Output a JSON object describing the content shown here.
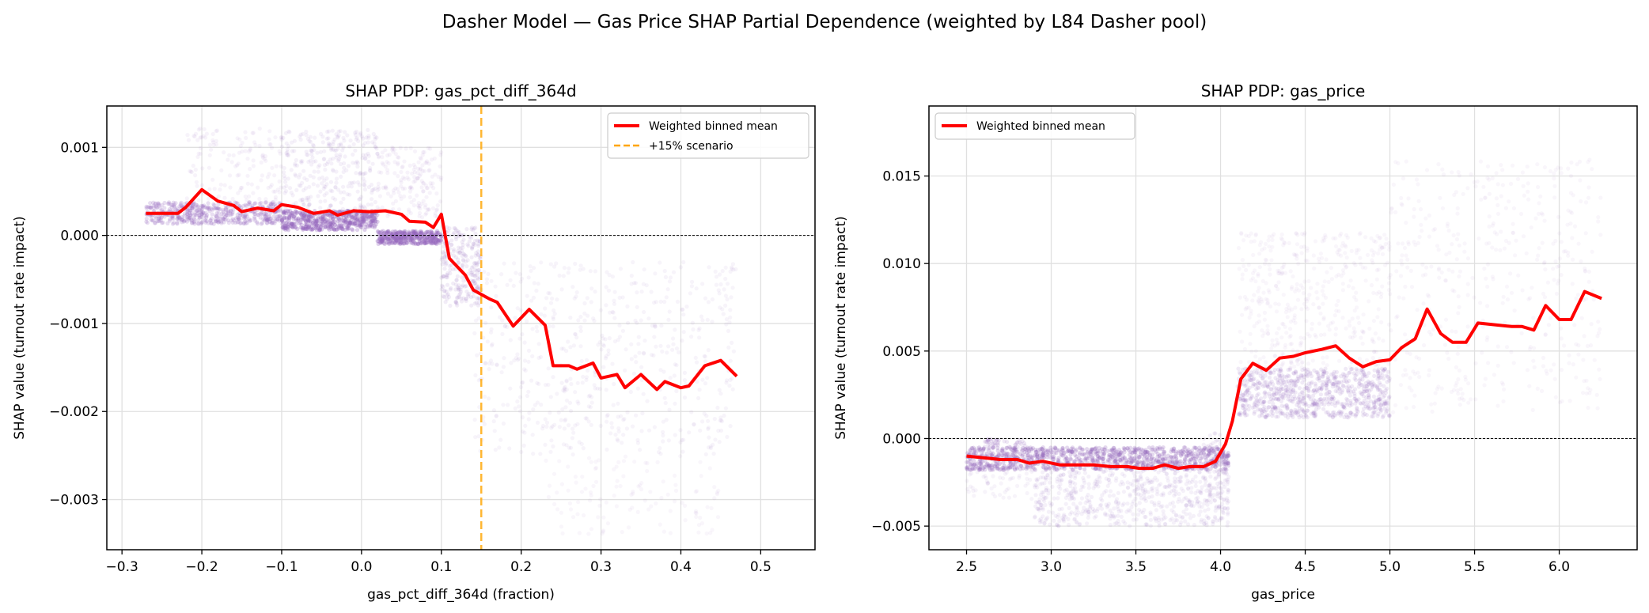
{
  "suptitle": "Dasher Model — Gas Price SHAP Partial Dependence (weighted by L84 Dasher pool)",
  "colors": {
    "scatter": "#9467bd",
    "line": "#ff0000",
    "scenario": "#ffa500",
    "grid": "#e0e0e0"
  },
  "chart_data": [
    {
      "type": "scatter",
      "title": "SHAP PDP: gas_pct_diff_364d",
      "xlabel": "gas_pct_diff_364d (fraction)",
      "ylabel": "SHAP value (turnout rate impact)",
      "xlim": [
        -0.319,
        0.568
      ],
      "ylim": [
        -0.00357,
        0.00147
      ],
      "xticks": [
        -0.3,
        -0.2,
        -0.1,
        0.0,
        0.1,
        0.2,
        0.3,
        0.4,
        0.5
      ],
      "xtick_labels": [
        "−0.3",
        "−0.2",
        "−0.1",
        "0.0",
        "0.1",
        "0.2",
        "0.3",
        "0.4",
        "0.5"
      ],
      "yticks": [
        -0.003,
        -0.002,
        -0.001,
        0.0,
        0.001
      ],
      "ytick_labels": [
        "−0.003",
        "−0.002",
        "−0.001",
        "0.000",
        "0.001"
      ],
      "grid": true,
      "zero_line": 0,
      "legend_position": "upper right",
      "legend": [
        "Weighted binned mean",
        "+15% scenario"
      ],
      "vline": {
        "x": 0.15,
        "name": "+15% scenario"
      },
      "line": {
        "name": "Weighted binned mean",
        "x": [
          -0.27,
          -0.25,
          -0.23,
          -0.22,
          -0.2,
          -0.18,
          -0.16,
          -0.15,
          -0.13,
          -0.11,
          -0.1,
          -0.08,
          -0.06,
          -0.04,
          -0.03,
          -0.01,
          0.01,
          0.03,
          0.05,
          0.06,
          0.08,
          0.09,
          0.1,
          0.11,
          0.13,
          0.14,
          0.16,
          0.17,
          0.19,
          0.21,
          0.23,
          0.24,
          0.26,
          0.27,
          0.29,
          0.3,
          0.32,
          0.33,
          0.35,
          0.37,
          0.38,
          0.4,
          0.41,
          0.43,
          0.45,
          0.47
        ],
        "y": [
          0.00025,
          0.00025,
          0.00025,
          0.00032,
          0.00052,
          0.00039,
          0.00034,
          0.00027,
          0.00031,
          0.00028,
          0.00035,
          0.00032,
          0.00025,
          0.00028,
          0.00023,
          0.00028,
          0.00027,
          0.00028,
          0.00024,
          0.00016,
          0.00015,
          9e-05,
          0.00024,
          -0.00026,
          -0.00045,
          -0.00062,
          -0.00072,
          -0.00076,
          -0.00103,
          -0.00084,
          -0.00102,
          -0.00148,
          -0.00148,
          -0.00152,
          -0.00145,
          -0.00162,
          -0.00158,
          -0.00173,
          -0.00158,
          -0.00175,
          -0.00166,
          -0.00173,
          -0.00171,
          -0.00148,
          -0.00142,
          -0.0016
        ]
      },
      "scatter_clouds": [
        {
          "x": [
            -0.27,
            -0.1
          ],
          "y": [
            0.00013,
            0.00038
          ],
          "n": 500,
          "alpha": 0.22
        },
        {
          "x": [
            -0.1,
            0.02
          ],
          "y": [
            6e-05,
            0.00028
          ],
          "n": 500,
          "alpha": 0.3
        },
        {
          "x": [
            0.02,
            0.1
          ],
          "y": [
            -0.0001,
            5e-05
          ],
          "n": 350,
          "alpha": 0.3
        },
        {
          "x": [
            -0.22,
            -0.1
          ],
          "y": [
            0.0004,
            0.00122
          ],
          "n": 140,
          "alpha": 0.08
        },
        {
          "x": [
            -0.1,
            0.02
          ],
          "y": [
            0.0003,
            0.0012
          ],
          "n": 300,
          "alpha": 0.09
        },
        {
          "x": [
            0.02,
            0.1
          ],
          "y": [
            0.0002,
            0.001
          ],
          "n": 180,
          "alpha": 0.08
        },
        {
          "x": [
            0.1,
            0.15
          ],
          "y": [
            -0.0008,
            0.0001
          ],
          "n": 250,
          "alpha": 0.12
        },
        {
          "x": [
            0.14,
            0.47
          ],
          "y": [
            -0.0025,
            -0.0003
          ],
          "n": 600,
          "alpha": 0.07
        },
        {
          "x": [
            0.23,
            0.45
          ],
          "y": [
            -0.0034,
            -0.0025
          ],
          "n": 120,
          "alpha": 0.06
        }
      ]
    },
    {
      "type": "scatter",
      "title": "SHAP PDP: gas_price",
      "xlabel": "gas_price",
      "ylabel": "SHAP value (turnout rate impact)",
      "xlim": [
        2.278,
        6.46
      ],
      "ylim": [
        -0.00635,
        0.019
      ],
      "xticks": [
        2.5,
        3.0,
        3.5,
        4.0,
        4.5,
        5.0,
        5.5,
        6.0
      ],
      "xtick_labels": [
        "2.5",
        "3.0",
        "3.5",
        "4.0",
        "4.5",
        "5.0",
        "5.5",
        "6.0"
      ],
      "yticks": [
        -0.005,
        0.0,
        0.005,
        0.01,
        0.015
      ],
      "ytick_labels": [
        "−0.005",
        "0.000",
        "0.005",
        "0.010",
        "0.015"
      ],
      "grid": true,
      "zero_line": 0,
      "legend_position": "upper left",
      "legend": [
        "Weighted binned mean"
      ],
      "line": {
        "name": "Weighted binned mean",
        "x": [
          2.5,
          2.6,
          2.7,
          2.8,
          2.87,
          2.95,
          3.05,
          3.15,
          3.25,
          3.35,
          3.45,
          3.52,
          3.6,
          3.67,
          3.75,
          3.82,
          3.9,
          3.97,
          4.03,
          4.07,
          4.12,
          4.19,
          4.27,
          4.35,
          4.43,
          4.5,
          4.6,
          4.68,
          4.76,
          4.84,
          4.92,
          5.0,
          5.07,
          5.15,
          5.22,
          5.3,
          5.37,
          5.45,
          5.52,
          5.62,
          5.72,
          5.78,
          5.85,
          5.92,
          6.0,
          6.07,
          6.15,
          6.25
        ],
        "y": [
          -0.001,
          -0.0011,
          -0.0012,
          -0.0012,
          -0.0014,
          -0.0013,
          -0.0015,
          -0.0015,
          -0.0015,
          -0.0016,
          -0.0016,
          -0.0017,
          -0.0017,
          -0.0015,
          -0.0017,
          -0.0016,
          -0.0016,
          -0.0013,
          -0.0003,
          0.001,
          0.0034,
          0.0043,
          0.0039,
          0.0046,
          0.0047,
          0.0049,
          0.0051,
          0.0053,
          0.0046,
          0.0041,
          0.0044,
          0.0045,
          0.0052,
          0.0057,
          0.0074,
          0.006,
          0.0055,
          0.0055,
          0.0066,
          0.0065,
          0.0064,
          0.0064,
          0.0062,
          0.0076,
          0.0068,
          0.0068,
          0.0084,
          0.008
        ]
      },
      "scatter_clouds": [
        {
          "x": [
            2.5,
            4.05
          ],
          "y": [
            -0.0018,
            -0.0005
          ],
          "n": 1000,
          "alpha": 0.25
        },
        {
          "x": [
            2.9,
            4.05
          ],
          "y": [
            -0.005,
            -0.0018
          ],
          "n": 600,
          "alpha": 0.09
        },
        {
          "x": [
            2.5,
            2.9
          ],
          "y": [
            -0.0035,
            -0.0005
          ],
          "n": 120,
          "alpha": 0.07
        },
        {
          "x": [
            2.6,
            2.85
          ],
          "y": [
            -0.0005,
            0.0
          ],
          "n": 40,
          "alpha": 0.15
        },
        {
          "x": [
            3.9,
            4.05
          ],
          "y": [
            -0.004,
            0.0003
          ],
          "n": 80,
          "alpha": 0.1
        },
        {
          "x": [
            4.1,
            5.0
          ],
          "y": [
            0.0012,
            0.004
          ],
          "n": 800,
          "alpha": 0.14
        },
        {
          "x": [
            4.1,
            5.0
          ],
          "y": [
            0.004,
            0.0118
          ],
          "n": 450,
          "alpha": 0.06
        },
        {
          "x": [
            5.0,
            6.25
          ],
          "y": [
            0.0015,
            0.016
          ],
          "n": 450,
          "alpha": 0.06
        }
      ]
    }
  ]
}
